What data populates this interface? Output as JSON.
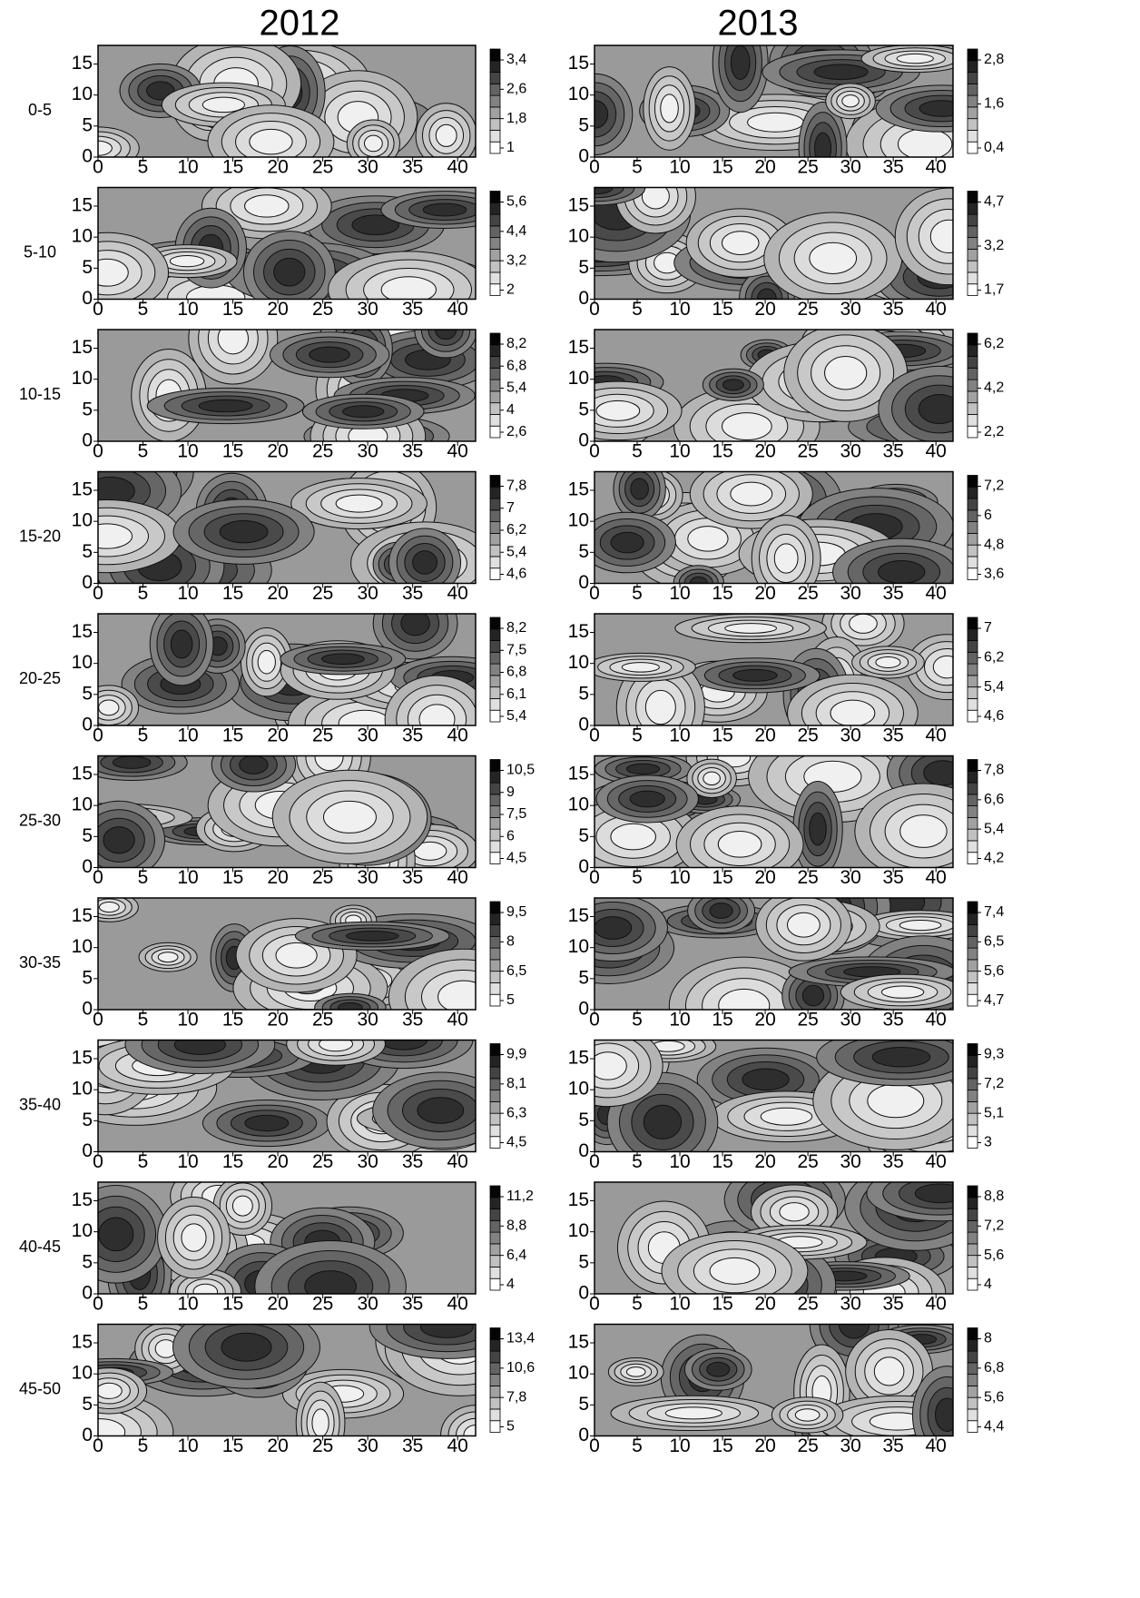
{
  "column_titles": [
    "2012",
    "2013"
  ],
  "row_labels": [
    "0-5",
    "5-10",
    "10-15",
    "15-20",
    "20-25",
    "25-30",
    "30-35",
    "35-40",
    "40-45",
    "45-50"
  ],
  "chart_data": [
    {
      "type": "contour",
      "xlim": [
        0,
        42
      ],
      "ylim": [
        0,
        18
      ],
      "xticks": [
        0,
        5,
        10,
        15,
        20,
        25,
        30,
        35,
        40
      ],
      "yticks": [
        0,
        5,
        10,
        15
      ],
      "colorbar_ticks": [
        {
          "value": 3.4,
          "label": "3,4"
        },
        {
          "value": 2.6,
          "label": "2,6"
        },
        {
          "value": 1.8,
          "label": "1,8"
        },
        1
      ]
    },
    {
      "type": "contour",
      "xlim": [
        0,
        42
      ],
      "ylim": [
        0,
        18
      ],
      "xticks": [
        0,
        5,
        10,
        15,
        20,
        25,
        30,
        35,
        40
      ],
      "yticks": [
        0,
        5,
        10,
        15
      ],
      "colorbar_ticks": [
        {
          "value": 2.8,
          "label": "2,8"
        },
        {
          "value": 1.6,
          "label": "1,6"
        },
        {
          "value": 0.4,
          "label": "0,4"
        }
      ]
    },
    {
      "type": "contour",
      "xlim": [
        0,
        42
      ],
      "ylim": [
        0,
        18
      ],
      "xticks": [
        0,
        5,
        10,
        15,
        20,
        25,
        30,
        35,
        40
      ],
      "yticks": [
        0,
        5,
        10,
        15
      ],
      "colorbar_ticks": [
        {
          "value": 5.6,
          "label": "5,6"
        },
        {
          "value": 4.4,
          "label": "4,4"
        },
        {
          "value": 3.2,
          "label": "3,2"
        },
        2
      ]
    },
    {
      "type": "contour",
      "xlim": [
        0,
        42
      ],
      "ylim": [
        0,
        18
      ],
      "xticks": [
        0,
        5,
        10,
        15,
        20,
        25,
        30,
        35,
        40
      ],
      "yticks": [
        0,
        5,
        10,
        15
      ],
      "colorbar_ticks": [
        {
          "value": 4.7,
          "label": "4,7"
        },
        {
          "value": 3.2,
          "label": "3,2"
        },
        {
          "value": 1.7,
          "label": "1,7"
        }
      ]
    },
    {
      "type": "contour",
      "xlim": [
        0,
        42
      ],
      "ylim": [
        0,
        18
      ],
      "xticks": [
        0,
        5,
        10,
        15,
        20,
        25,
        30,
        35,
        40
      ],
      "yticks": [
        0,
        5,
        10,
        15
      ],
      "colorbar_ticks": [
        {
          "value": 8.2,
          "label": "8,2"
        },
        {
          "value": 6.8,
          "label": "6,8"
        },
        {
          "value": 5.4,
          "label": "5,4"
        },
        4,
        {
          "value": 2.6,
          "label": "2,6"
        }
      ]
    },
    {
      "type": "contour",
      "xlim": [
        0,
        42
      ],
      "ylim": [
        0,
        18
      ],
      "xticks": [
        0,
        5,
        10,
        15,
        20,
        25,
        30,
        35,
        40
      ],
      "yticks": [
        0,
        5,
        10,
        15
      ],
      "colorbar_ticks": [
        {
          "value": 6.2,
          "label": "6,2"
        },
        {
          "value": 4.2,
          "label": "4,2"
        },
        {
          "value": 2.2,
          "label": "2,2"
        }
      ]
    },
    {
      "type": "contour",
      "xlim": [
        0,
        42
      ],
      "ylim": [
        0,
        18
      ],
      "xticks": [
        0,
        5,
        10,
        15,
        20,
        25,
        30,
        35,
        40
      ],
      "yticks": [
        0,
        5,
        10,
        15
      ],
      "colorbar_ticks": [
        {
          "value": 7.8,
          "label": "7,8"
        },
        7,
        {
          "value": 6.2,
          "label": "6,2"
        },
        {
          "value": 5.4,
          "label": "5,4"
        },
        {
          "value": 4.6,
          "label": "4,6"
        }
      ]
    },
    {
      "type": "contour",
      "xlim": [
        0,
        42
      ],
      "ylim": [
        0,
        18
      ],
      "xticks": [
        0,
        5,
        10,
        15,
        20,
        25,
        30,
        35,
        40
      ],
      "yticks": [
        0,
        5,
        10,
        15
      ],
      "colorbar_ticks": [
        {
          "value": 7.2,
          "label": "7,2"
        },
        6,
        {
          "value": 4.8,
          "label": "4,8"
        },
        {
          "value": 3.6,
          "label": "3,6"
        }
      ]
    },
    {
      "type": "contour",
      "xlim": [
        0,
        42
      ],
      "ylim": [
        0,
        18
      ],
      "xticks": [
        0,
        5,
        10,
        15,
        20,
        25,
        30,
        35,
        40
      ],
      "yticks": [
        0,
        5,
        10,
        15
      ],
      "colorbar_ticks": [
        {
          "value": 8.2,
          "label": "8,2"
        },
        {
          "value": 7.5,
          "label": "7,5"
        },
        {
          "value": 6.8,
          "label": "6,8"
        },
        {
          "value": 6.1,
          "label": "6,1"
        },
        {
          "value": 5.4,
          "label": "5,4"
        }
      ]
    },
    {
      "type": "contour",
      "xlim": [
        0,
        42
      ],
      "ylim": [
        0,
        18
      ],
      "xticks": [
        0,
        5,
        10,
        15,
        20,
        25,
        30,
        35,
        40
      ],
      "yticks": [
        0,
        5,
        10,
        15
      ],
      "colorbar_ticks": [
        7,
        {
          "value": 6.2,
          "label": "6,2"
        },
        {
          "value": 5.4,
          "label": "5,4"
        },
        {
          "value": 4.6,
          "label": "4,6"
        }
      ]
    },
    {
      "type": "contour",
      "xlim": [
        0,
        42
      ],
      "ylim": [
        0,
        18
      ],
      "xticks": [
        0,
        5,
        10,
        15,
        20,
        25,
        30,
        35,
        40
      ],
      "yticks": [
        0,
        5,
        10,
        15
      ],
      "colorbar_ticks": [
        {
          "value": 10.5,
          "label": "10,5"
        },
        9,
        {
          "value": 7.5,
          "label": "7,5"
        },
        6,
        {
          "value": 4.5,
          "label": "4,5"
        }
      ]
    },
    {
      "type": "contour",
      "xlim": [
        0,
        42
      ],
      "ylim": [
        0,
        18
      ],
      "xticks": [
        0,
        5,
        10,
        15,
        20,
        25,
        30,
        35,
        40
      ],
      "yticks": [
        0,
        5,
        10,
        15
      ],
      "colorbar_ticks": [
        {
          "value": 7.8,
          "label": "7,8"
        },
        {
          "value": 6.6,
          "label": "6,6"
        },
        {
          "value": 5.4,
          "label": "5,4"
        },
        {
          "value": 4.2,
          "label": "4,2"
        }
      ]
    },
    {
      "type": "contour",
      "xlim": [
        0,
        42
      ],
      "ylim": [
        0,
        18
      ],
      "xticks": [
        0,
        5,
        10,
        15,
        20,
        25,
        30,
        35,
        40
      ],
      "yticks": [
        0,
        5,
        10,
        15
      ],
      "colorbar_ticks": [
        {
          "value": 9.5,
          "label": "9,5"
        },
        8,
        {
          "value": 6.5,
          "label": "6,5"
        },
        5
      ]
    },
    {
      "type": "contour",
      "xlim": [
        0,
        42
      ],
      "ylim": [
        0,
        18
      ],
      "xticks": [
        0,
        5,
        10,
        15,
        20,
        25,
        30,
        35,
        40
      ],
      "yticks": [
        0,
        5,
        10,
        15
      ],
      "colorbar_ticks": [
        {
          "value": 7.4,
          "label": "7,4"
        },
        {
          "value": 6.5,
          "label": "6,5"
        },
        {
          "value": 5.6,
          "label": "5,6"
        },
        {
          "value": 4.7,
          "label": "4,7"
        }
      ]
    },
    {
      "type": "contour",
      "xlim": [
        0,
        42
      ],
      "ylim": [
        0,
        18
      ],
      "xticks": [
        0,
        5,
        10,
        15,
        20,
        25,
        30,
        35,
        40
      ],
      "yticks": [
        0,
        5,
        10,
        15
      ],
      "colorbar_ticks": [
        {
          "value": 9.9,
          "label": "9,9"
        },
        {
          "value": 8.1,
          "label": "8,1"
        },
        {
          "value": 6.3,
          "label": "6,3"
        },
        {
          "value": 4.5,
          "label": "4,5"
        }
      ]
    },
    {
      "type": "contour",
      "xlim": [
        0,
        42
      ],
      "ylim": [
        0,
        18
      ],
      "xticks": [
        0,
        5,
        10,
        15,
        20,
        25,
        30,
        35,
        40
      ],
      "yticks": [
        0,
        5,
        10,
        15
      ],
      "colorbar_ticks": [
        {
          "value": 9.3,
          "label": "9,3"
        },
        {
          "value": 7.2,
          "label": "7,2"
        },
        {
          "value": 5.1,
          "label": "5,1"
        },
        3
      ]
    },
    {
      "type": "contour",
      "xlim": [
        0,
        42
      ],
      "ylim": [
        0,
        18
      ],
      "xticks": [
        0,
        5,
        10,
        15,
        20,
        25,
        30,
        35,
        40
      ],
      "yticks": [
        0,
        5,
        10,
        15
      ],
      "colorbar_ticks": [
        {
          "value": 11.2,
          "label": "11,2"
        },
        {
          "value": 8.8,
          "label": "8,8"
        },
        {
          "value": 6.4,
          "label": "6,4"
        },
        4
      ]
    },
    {
      "type": "contour",
      "xlim": [
        0,
        42
      ],
      "ylim": [
        0,
        18
      ],
      "xticks": [
        0,
        5,
        10,
        15,
        20,
        25,
        30,
        35,
        40
      ],
      "yticks": [
        0,
        5,
        10,
        15
      ],
      "colorbar_ticks": [
        {
          "value": 8.8,
          "label": "8,8"
        },
        {
          "value": 7.2,
          "label": "7,2"
        },
        {
          "value": 5.6,
          "label": "5,6"
        },
        4
      ]
    },
    {
      "type": "contour",
      "xlim": [
        0,
        42
      ],
      "ylim": [
        0,
        18
      ],
      "xticks": [
        0,
        5,
        10,
        15,
        20,
        25,
        30,
        35,
        40
      ],
      "yticks": [
        0,
        5,
        10,
        15
      ],
      "colorbar_ticks": [
        {
          "value": 13.4,
          "label": "13,4"
        },
        {
          "value": 10.6,
          "label": "10,6"
        },
        {
          "value": 7.8,
          "label": "7,8"
        },
        5
      ]
    },
    {
      "type": "contour",
      "xlim": [
        0,
        42
      ],
      "ylim": [
        0,
        18
      ],
      "xticks": [
        0,
        5,
        10,
        15,
        20,
        25,
        30,
        35,
        40
      ],
      "yticks": [
        0,
        5,
        10,
        15
      ],
      "colorbar_ticks": [
        8,
        {
          "value": 6.8,
          "label": "6,8"
        },
        {
          "value": 5.6,
          "label": "5,6"
        },
        {
          "value": 4.4,
          "label": "4,4"
        }
      ]
    }
  ]
}
